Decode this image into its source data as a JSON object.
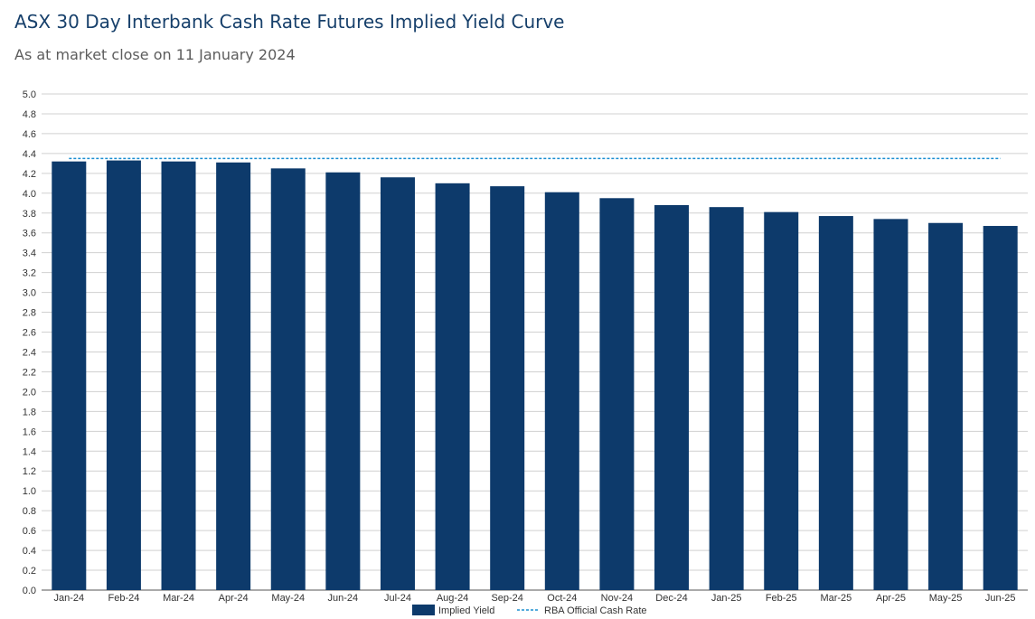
{
  "title": "ASX 30 Day Interbank Cash Rate Futures Implied Yield Curve",
  "subtitle": "As at market close on 11 January 2024",
  "colors": {
    "bar": "#0d3a6b",
    "reference": "#1b8fd1",
    "grid": "#d0d0d0",
    "axis": "#555555"
  },
  "chart_data": {
    "type": "bar",
    "categories": [
      "Jan-24",
      "Feb-24",
      "Mar-24",
      "Apr-24",
      "May-24",
      "Jun-24",
      "Jul-24",
      "Aug-24",
      "Sep-24",
      "Oct-24",
      "Nov-24",
      "Dec-24",
      "Jan-25",
      "Feb-25",
      "Mar-25",
      "Apr-25",
      "May-25",
      "Jun-25"
    ],
    "series": [
      {
        "name": "Implied Yield",
        "values": [
          4.32,
          4.33,
          4.32,
          4.31,
          4.25,
          4.21,
          4.16,
          4.1,
          4.07,
          4.01,
          3.95,
          3.88,
          3.86,
          3.81,
          3.77,
          3.74,
          3.7,
          3.67
        ]
      }
    ],
    "reference_line": {
      "name": "RBA Official Cash Rate",
      "value": 4.35
    },
    "ylim": [
      0,
      5.0
    ],
    "yticks": [
      "0.0",
      "0.2",
      "0.4",
      "0.6",
      "0.8",
      "1.0",
      "1.2",
      "1.4",
      "1.6",
      "1.8",
      "2.0",
      "2.2",
      "2.4",
      "2.6",
      "2.8",
      "3.0",
      "3.2",
      "3.4",
      "3.6",
      "3.8",
      "4.0",
      "4.2",
      "4.4",
      "4.6",
      "4.8",
      "5.0"
    ],
    "grid": true,
    "legend": {
      "position": "bottom-center",
      "entries": [
        "Implied Yield",
        "RBA Official Cash Rate"
      ]
    },
    "xlabel": "",
    "ylabel": ""
  }
}
